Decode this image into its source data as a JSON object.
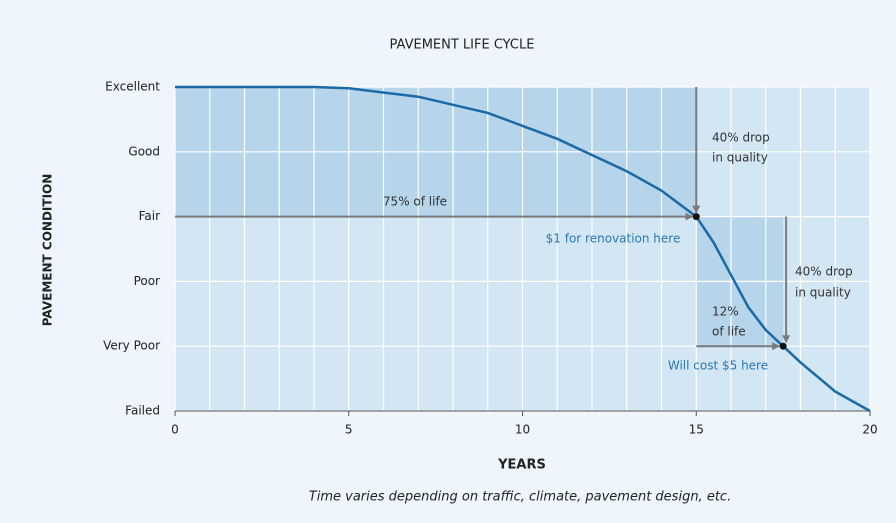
{
  "chart_data": {
    "type": "line",
    "title": "PAVEMENT LIFE CYCLE",
    "xlabel": "YEARS",
    "ylabel": "PAVEMENT CONDITION",
    "caption": "Time varies depending on traffic, climate, pavement design, etc.",
    "x": [
      0,
      4,
      5,
      7,
      9,
      11,
      13,
      14,
      15,
      15.5,
      16,
      16.5,
      17,
      17.5,
      18,
      19,
      20
    ],
    "values": [
      5,
      5,
      4.98,
      4.85,
      4.6,
      4.2,
      3.7,
      3.4,
      3,
      2.6,
      2.1,
      1.6,
      1.25,
      1,
      0.75,
      0.3,
      0
    ],
    "color": "#1b6aa5",
    "points": {
      "x": [
        15,
        17.5
      ],
      "values": [
        3,
        1
      ]
    },
    "xlim": [
      0,
      20
    ],
    "xticks": [
      0,
      5,
      10,
      15,
      20
    ],
    "ylim": [
      0,
      5
    ],
    "yticks": [
      {
        "value": 0,
        "label": "Failed"
      },
      {
        "value": 1,
        "label": "Very Poor"
      },
      {
        "value": 2,
        "label": "Poor"
      },
      {
        "value": 3,
        "label": "Fair"
      },
      {
        "value": 4,
        "label": "Good"
      },
      {
        "value": 5,
        "label": "Excellent"
      }
    ],
    "grid": true,
    "annotations": {
      "life75": "75% of life",
      "renovation": "$1 for renovation here",
      "drop1": [
        "40% drop",
        "in quality"
      ],
      "drop2": [
        "40% drop",
        "in quality"
      ],
      "life12": [
        "12%",
        "of life"
      ],
      "cost": "Will cost $5 here"
    }
  }
}
